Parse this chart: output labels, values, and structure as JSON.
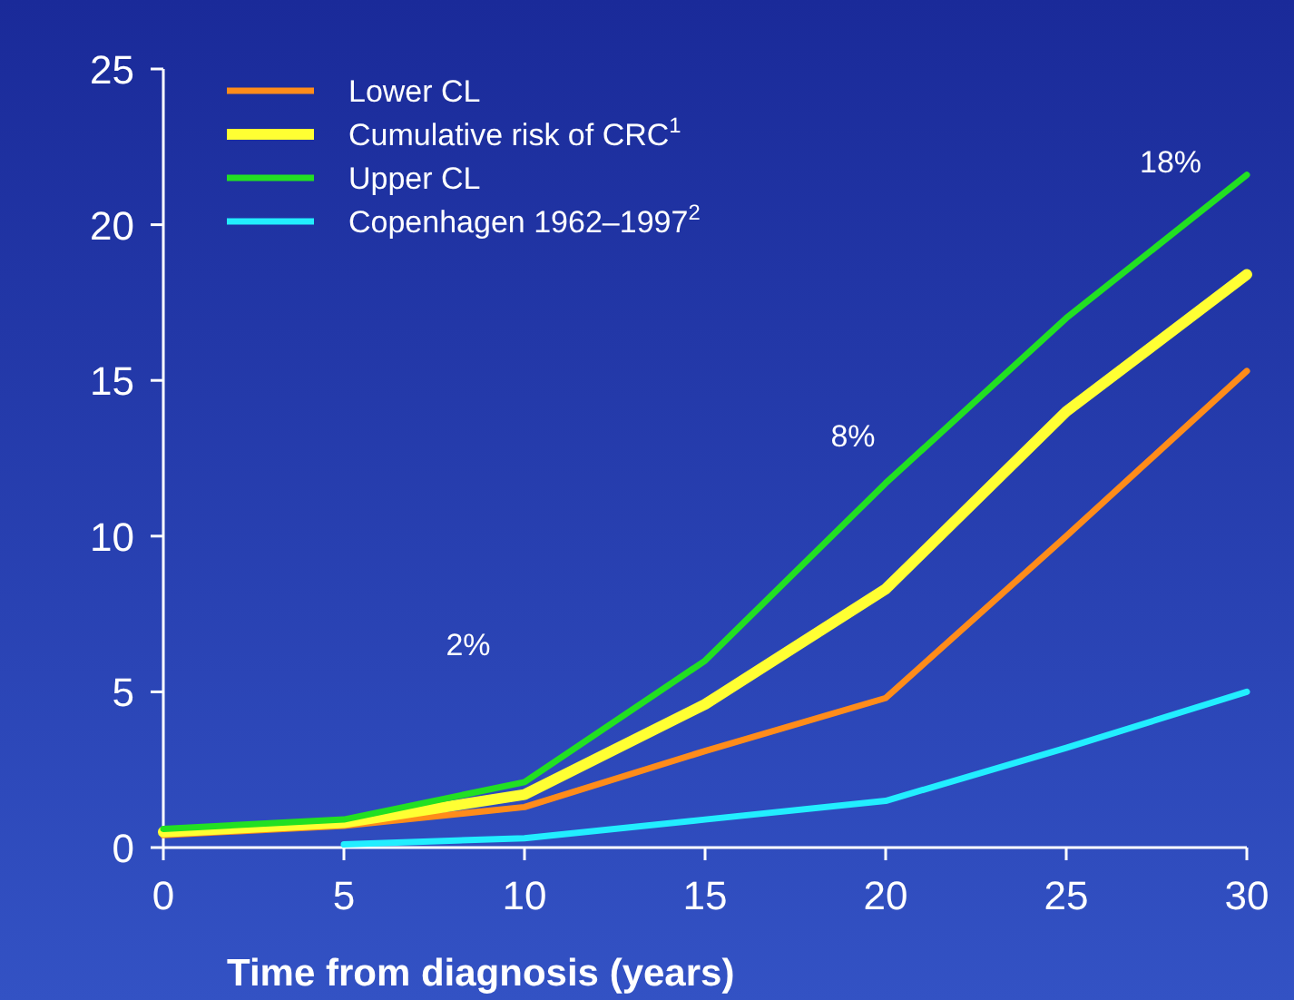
{
  "chart_data": {
    "type": "line",
    "xlabel": "Time from diagnosis (years)",
    "x": [
      0,
      5,
      10,
      15,
      20,
      25,
      30
    ],
    "series": [
      {
        "name": "Lower CL",
        "color": "#ff8c1a",
        "values": [
          0.4,
          0.7,
          1.3,
          3.1,
          4.8,
          10.0,
          15.3
        ]
      },
      {
        "name": "Cumulative risk of CRC$^{1}$",
        "color": "#ffff33",
        "values": [
          0.5,
          0.8,
          1.7,
          4.6,
          8.3,
          14.0,
          18.4
        ]
      },
      {
        "name": "Upper CL",
        "color": "#22e022",
        "values": [
          0.6,
          0.9,
          2.1,
          6.0,
          11.7,
          17.0,
          21.6
        ]
      },
      {
        "name": "Copenhagen 1962–1997$^{2}$",
        "color": "#22eeff",
        "values": [
          null,
          0.1,
          0.3,
          0.9,
          1.5,
          3.2,
          5.0
        ]
      }
    ],
    "xlim": [
      0,
      30
    ],
    "xticks": [
      0,
      5,
      10,
      15,
      20,
      25,
      30
    ],
    "ylim": [
      0,
      25
    ],
    "yticks": [
      0,
      5,
      10,
      15,
      20,
      25
    ],
    "grid": false,
    "legend": "top left",
    "marker": "none",
    "line_style": "solid",
    "annotations": [
      "2%",
      "8%",
      "18%"
    ]
  }
}
